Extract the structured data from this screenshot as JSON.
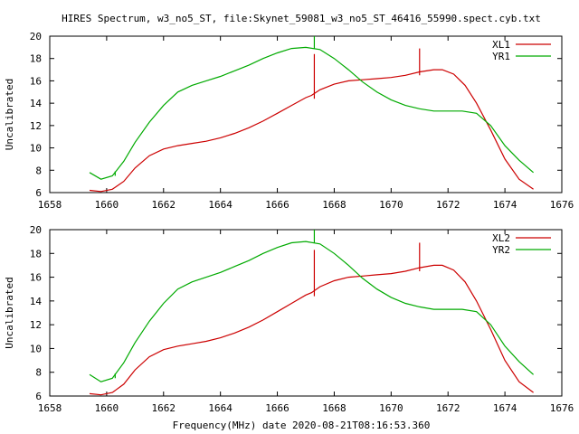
{
  "title": "HIRES Spectrum, w3_no5_ST, file:Skynet_59081_w3_no5_ST_46416_55990.spect.cyb.txt",
  "xlabel": "Frequency(MHz) date 2020-08-21T08:16:53.360",
  "colors": {
    "red": "#cc0000",
    "green": "#00aa00",
    "axis": "#000000"
  },
  "chart_data": [
    {
      "type": "line",
      "ylabel": "Uncalibrated",
      "xlim": [
        1658,
        1676
      ],
      "ylim": [
        6,
        20
      ],
      "x_ticks": [
        1658,
        1660,
        1662,
        1664,
        1666,
        1668,
        1670,
        1672,
        1674,
        1676
      ],
      "y_ticks": [
        6,
        8,
        10,
        12,
        14,
        16,
        18,
        20
      ],
      "legend_position": "top-right",
      "series": [
        {
          "name": "XL1",
          "color": "#cc0000",
          "x": [
            1659.4,
            1659.8,
            1660.2,
            1660.6,
            1661.0,
            1661.5,
            1662.0,
            1662.5,
            1663.0,
            1663.5,
            1664.0,
            1664.5,
            1665.0,
            1665.5,
            1666.0,
            1666.5,
            1667.0,
            1667.2,
            1667.5,
            1668.0,
            1668.5,
            1669.0,
            1669.5,
            1670.0,
            1670.5,
            1671.0,
            1671.5,
            1671.8,
            1672.2,
            1672.6,
            1673.0,
            1673.5,
            1674.0,
            1674.5,
            1675.0
          ],
          "y": [
            6.2,
            6.1,
            6.3,
            7.0,
            8.2,
            9.3,
            9.9,
            10.2,
            10.4,
            10.6,
            10.9,
            11.3,
            11.8,
            12.4,
            13.1,
            13.8,
            14.5,
            14.7,
            15.2,
            15.7,
            16.0,
            16.1,
            16.2,
            16.3,
            16.5,
            16.8,
            17.0,
            17.0,
            16.6,
            15.6,
            14.0,
            11.6,
            9.0,
            7.2,
            6.3
          ],
          "spikes": [
            {
              "x": 1667.3,
              "top": 18.4,
              "bottom": 14.4
            },
            {
              "x": 1671.0,
              "top": 18.9,
              "bottom": 16.5
            }
          ]
        },
        {
          "name": "YR1",
          "color": "#00aa00",
          "x": [
            1659.4,
            1659.8,
            1660.2,
            1660.6,
            1661.0,
            1661.5,
            1662.0,
            1662.5,
            1663.0,
            1663.5,
            1664.0,
            1664.5,
            1665.0,
            1665.5,
            1666.0,
            1666.5,
            1667.0,
            1667.5,
            1668.0,
            1668.5,
            1669.0,
            1669.5,
            1670.0,
            1670.5,
            1671.0,
            1671.5,
            1672.0,
            1672.5,
            1673.0,
            1673.5,
            1674.0,
            1674.5,
            1675.0
          ],
          "y": [
            7.8,
            7.2,
            7.5,
            8.8,
            10.5,
            12.3,
            13.8,
            15.0,
            15.6,
            16.0,
            16.4,
            16.9,
            17.4,
            18.0,
            18.5,
            18.9,
            19.0,
            18.8,
            18.0,
            17.0,
            15.9,
            15.0,
            14.3,
            13.8,
            13.5,
            13.3,
            13.3,
            13.3,
            13.1,
            12.0,
            10.2,
            8.9,
            7.8
          ],
          "spikes": [
            {
              "x": 1667.3,
              "top": 20.0,
              "bottom": 18.9
            },
            {
              "x": 1660.3,
              "top": 7.9,
              "bottom": 7.5
            }
          ]
        }
      ]
    },
    {
      "type": "line",
      "ylabel": "Uncalibrated",
      "xlim": [
        1658,
        1676
      ],
      "ylim": [
        6,
        20
      ],
      "x_ticks": [
        1658,
        1660,
        1662,
        1664,
        1666,
        1668,
        1670,
        1672,
        1674,
        1676
      ],
      "y_ticks": [
        6,
        8,
        10,
        12,
        14,
        16,
        18,
        20
      ],
      "legend_position": "top-right",
      "series": [
        {
          "name": "XL2",
          "color": "#cc0000",
          "x": [
            1659.4,
            1659.8,
            1660.2,
            1660.6,
            1661.0,
            1661.5,
            1662.0,
            1662.5,
            1663.0,
            1663.5,
            1664.0,
            1664.5,
            1665.0,
            1665.5,
            1666.0,
            1666.5,
            1667.0,
            1667.2,
            1667.5,
            1668.0,
            1668.5,
            1669.0,
            1669.5,
            1670.0,
            1670.5,
            1671.0,
            1671.5,
            1671.8,
            1672.2,
            1672.6,
            1673.0,
            1673.5,
            1674.0,
            1674.5,
            1675.0
          ],
          "y": [
            6.2,
            6.1,
            6.3,
            7.0,
            8.2,
            9.3,
            9.9,
            10.2,
            10.4,
            10.6,
            10.9,
            11.3,
            11.8,
            12.4,
            13.1,
            13.8,
            14.5,
            14.7,
            15.2,
            15.7,
            16.0,
            16.1,
            16.2,
            16.3,
            16.5,
            16.8,
            17.0,
            17.0,
            16.6,
            15.6,
            14.0,
            11.6,
            9.0,
            7.2,
            6.3
          ],
          "spikes": [
            {
              "x": 1667.3,
              "top": 18.3,
              "bottom": 14.4
            },
            {
              "x": 1671.0,
              "top": 18.9,
              "bottom": 16.5
            }
          ]
        },
        {
          "name": "YR2",
          "color": "#00aa00",
          "x": [
            1659.4,
            1659.8,
            1660.2,
            1660.6,
            1661.0,
            1661.5,
            1662.0,
            1662.5,
            1663.0,
            1663.5,
            1664.0,
            1664.5,
            1665.0,
            1665.5,
            1666.0,
            1666.5,
            1667.0,
            1667.5,
            1668.0,
            1668.5,
            1669.0,
            1669.5,
            1670.0,
            1670.5,
            1671.0,
            1671.5,
            1672.0,
            1672.5,
            1673.0,
            1673.5,
            1674.0,
            1674.5,
            1675.0
          ],
          "y": [
            7.8,
            7.2,
            7.5,
            8.8,
            10.5,
            12.3,
            13.8,
            15.0,
            15.6,
            16.0,
            16.4,
            16.9,
            17.4,
            18.0,
            18.5,
            18.9,
            19.0,
            18.8,
            18.0,
            17.0,
            15.9,
            15.0,
            14.3,
            13.8,
            13.5,
            13.3,
            13.3,
            13.3,
            13.1,
            12.0,
            10.2,
            8.9,
            7.8
          ],
          "spikes": [
            {
              "x": 1667.3,
              "top": 20.0,
              "bottom": 18.9
            },
            {
              "x": 1660.3,
              "top": 7.9,
              "bottom": 7.5
            }
          ]
        }
      ]
    }
  ]
}
